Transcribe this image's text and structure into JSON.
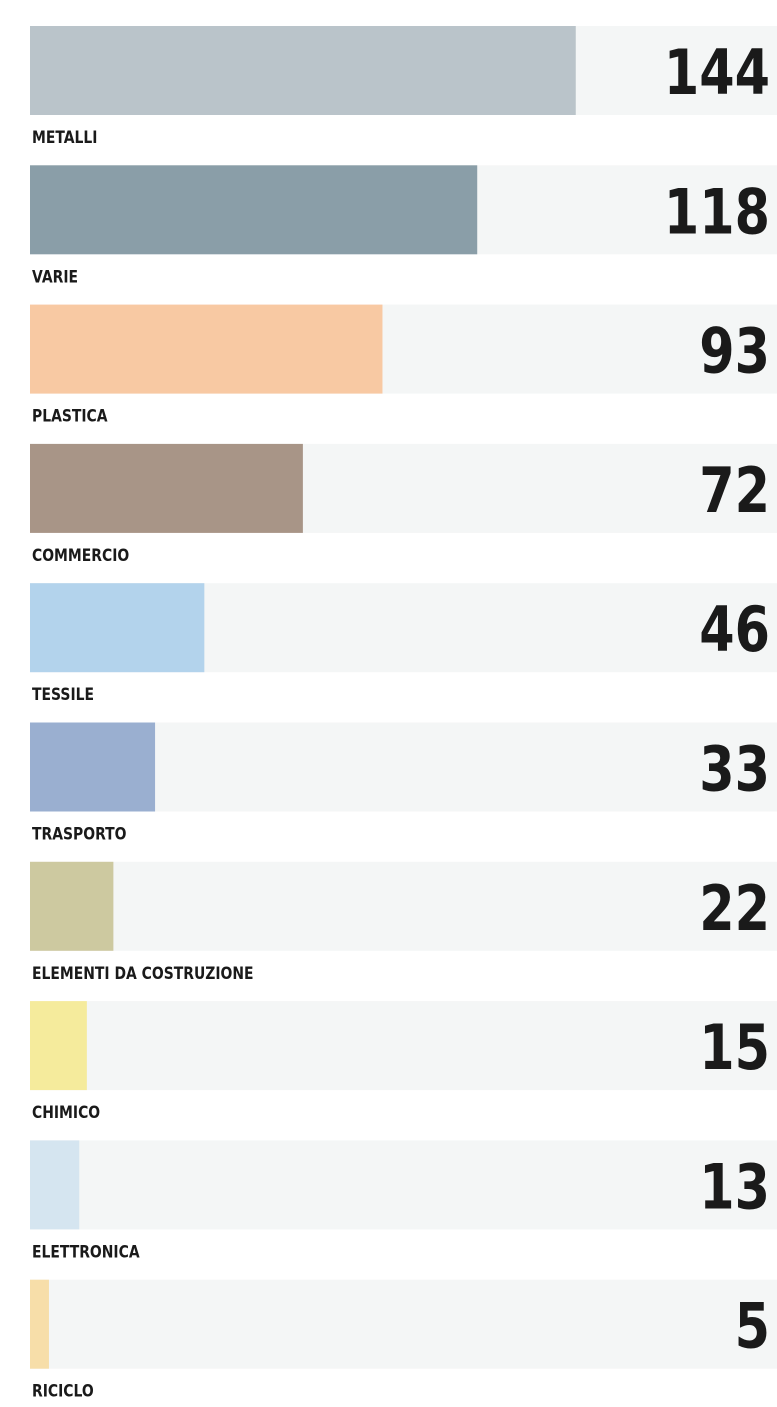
{
  "chart_data": {
    "type": "bar",
    "categories": [
      "METALLI",
      "VARIE",
      "PLASTICA",
      "COMMERCIO",
      "TESSILE",
      "TRASPORTO",
      "ELEMENTI DA COSTRUZIONE",
      "CHIMICO",
      "ELETTRONICA",
      "RICICLO"
    ],
    "values": [
      144,
      118,
      93,
      72,
      46,
      33,
      22,
      15,
      13,
      5
    ],
    "colors": [
      "#bac4ca",
      "#8a9ea8",
      "#f8c9a3",
      "#a89587",
      "#b3d3ec",
      "#9aafd0",
      "#cdc9a0",
      "#f5eb9c",
      "#d5e5f0",
      "#f7dea9"
    ],
    "track_color": "#f4f6f6"
  }
}
